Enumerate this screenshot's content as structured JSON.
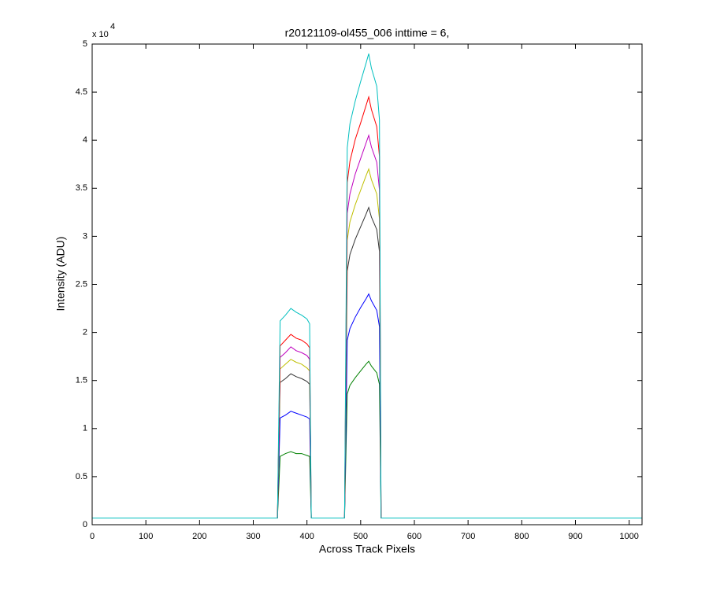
{
  "chart_data": {
    "type": "line",
    "title": "r20121109-ol455_006 inttime = 6,",
    "x_label": "Across Track Pixels",
    "y_label": "Intensity (ADU)",
    "y_multiplier": {
      "base": "x 10",
      "exponent": "4"
    },
    "x": [
      0,
      100,
      200,
      300,
      345,
      350,
      360,
      370,
      380,
      390,
      400,
      405,
      408,
      470,
      475,
      480,
      490,
      500,
      510,
      515,
      520,
      530,
      535,
      538,
      600,
      700,
      800,
      900,
      1024
    ],
    "series": [
      {
        "color": "#008000",
        "values": [
          0.07,
          0.07,
          0.07,
          0.07,
          0.07,
          0.71,
          0.74,
          0.76,
          0.74,
          0.74,
          0.72,
          0.71,
          0.07,
          0.07,
          1.36,
          1.45,
          1.53,
          1.6,
          1.67,
          1.7,
          1.65,
          1.58,
          1.46,
          0.07,
          0.07,
          0.07,
          0.07,
          0.07,
          0.07
        ]
      },
      {
        "color": "#0000ff",
        "values": [
          0.07,
          0.07,
          0.07,
          0.07,
          0.07,
          1.11,
          1.14,
          1.18,
          1.16,
          1.14,
          1.12,
          1.1,
          0.07,
          0.07,
          1.92,
          2.04,
          2.16,
          2.26,
          2.35,
          2.4,
          2.33,
          2.23,
          2.06,
          0.07,
          0.07,
          0.07,
          0.07,
          0.07,
          0.07
        ]
      },
      {
        "color": "#333333",
        "values": [
          0.07,
          0.07,
          0.07,
          0.07,
          0.07,
          1.48,
          1.52,
          1.57,
          1.54,
          1.52,
          1.49,
          1.46,
          0.07,
          0.07,
          2.64,
          2.81,
          2.97,
          3.1,
          3.23,
          3.3,
          3.2,
          3.07,
          2.84,
          0.07,
          0.07,
          0.07,
          0.07,
          0.07,
          0.07
        ]
      },
      {
        "color": "#bfbf00",
        "values": [
          0.07,
          0.07,
          0.07,
          0.07,
          0.07,
          1.62,
          1.67,
          1.72,
          1.69,
          1.67,
          1.63,
          1.6,
          0.07,
          0.07,
          2.96,
          3.15,
          3.33,
          3.48,
          3.63,
          3.7,
          3.59,
          3.44,
          3.18,
          0.07,
          0.07,
          0.07,
          0.07,
          0.07,
          0.07
        ]
      },
      {
        "color": "#bf00bf",
        "values": [
          0.07,
          0.07,
          0.07,
          0.07,
          0.07,
          1.74,
          1.79,
          1.85,
          1.81,
          1.79,
          1.76,
          1.72,
          0.07,
          0.07,
          3.24,
          3.44,
          3.65,
          3.81,
          3.97,
          4.05,
          3.93,
          3.77,
          3.48,
          0.07,
          0.07,
          0.07,
          0.07,
          0.07,
          0.07
        ]
      },
      {
        "color": "#ff0000",
        "values": [
          0.07,
          0.07,
          0.07,
          0.07,
          0.07,
          1.86,
          1.92,
          1.98,
          1.94,
          1.92,
          1.88,
          1.84,
          0.07,
          0.07,
          3.56,
          3.78,
          4.01,
          4.18,
          4.36,
          4.45,
          4.32,
          4.14,
          3.83,
          0.07,
          0.07,
          0.07,
          0.07,
          0.07,
          0.07
        ]
      },
      {
        "color": "#00bfbf",
        "values": [
          0.07,
          0.07,
          0.07,
          0.07,
          0.07,
          2.12,
          2.18,
          2.25,
          2.21,
          2.18,
          2.14,
          2.09,
          0.07,
          0.07,
          3.92,
          4.17,
          4.41,
          4.61,
          4.8,
          4.9,
          4.75,
          4.56,
          4.21,
          0.07,
          0.07,
          0.07,
          0.07,
          0.07,
          0.07
        ]
      }
    ],
    "xlim": [
      0,
      1024
    ],
    "xticks": [
      0,
      100,
      200,
      300,
      400,
      500,
      600,
      700,
      800,
      900,
      1000
    ],
    "ylim": [
      0,
      5
    ],
    "yticks": [
      0,
      0.5,
      1,
      1.5,
      2,
      2.5,
      3,
      3.5,
      4,
      4.5,
      5
    ],
    "grid": false
  }
}
